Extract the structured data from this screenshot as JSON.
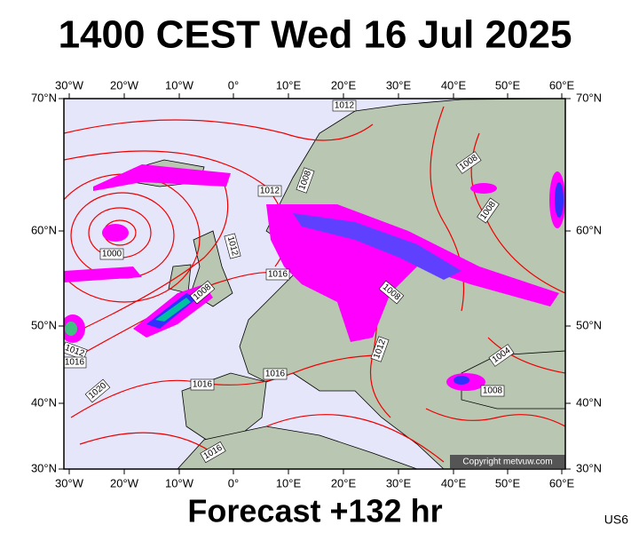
{
  "header": {
    "title": "1400 CEST Wed 16 Jul 2025"
  },
  "map": {
    "lon_labels": [
      "30°W",
      "20°W",
      "10°W",
      "0°",
      "10°E",
      "20°E",
      "30°E",
      "40°E",
      "50°E",
      "60°E"
    ],
    "lat_labels": [
      "70°N",
      "60°N",
      "50°N",
      "40°N",
      "30°N"
    ],
    "isobar_labels": [
      "1012",
      "1008",
      "1012",
      "1008",
      "1008",
      "1012",
      "1000",
      "1016",
      "1008",
      "1008",
      "1012",
      "1016",
      "1012",
      "1004",
      "1020",
      "1016",
      "1016",
      "1008",
      "1016"
    ],
    "copyright": "Copyright metvuw.com"
  },
  "footer": {
    "forecast": "Forecast +132 hr",
    "code": "US6"
  }
}
